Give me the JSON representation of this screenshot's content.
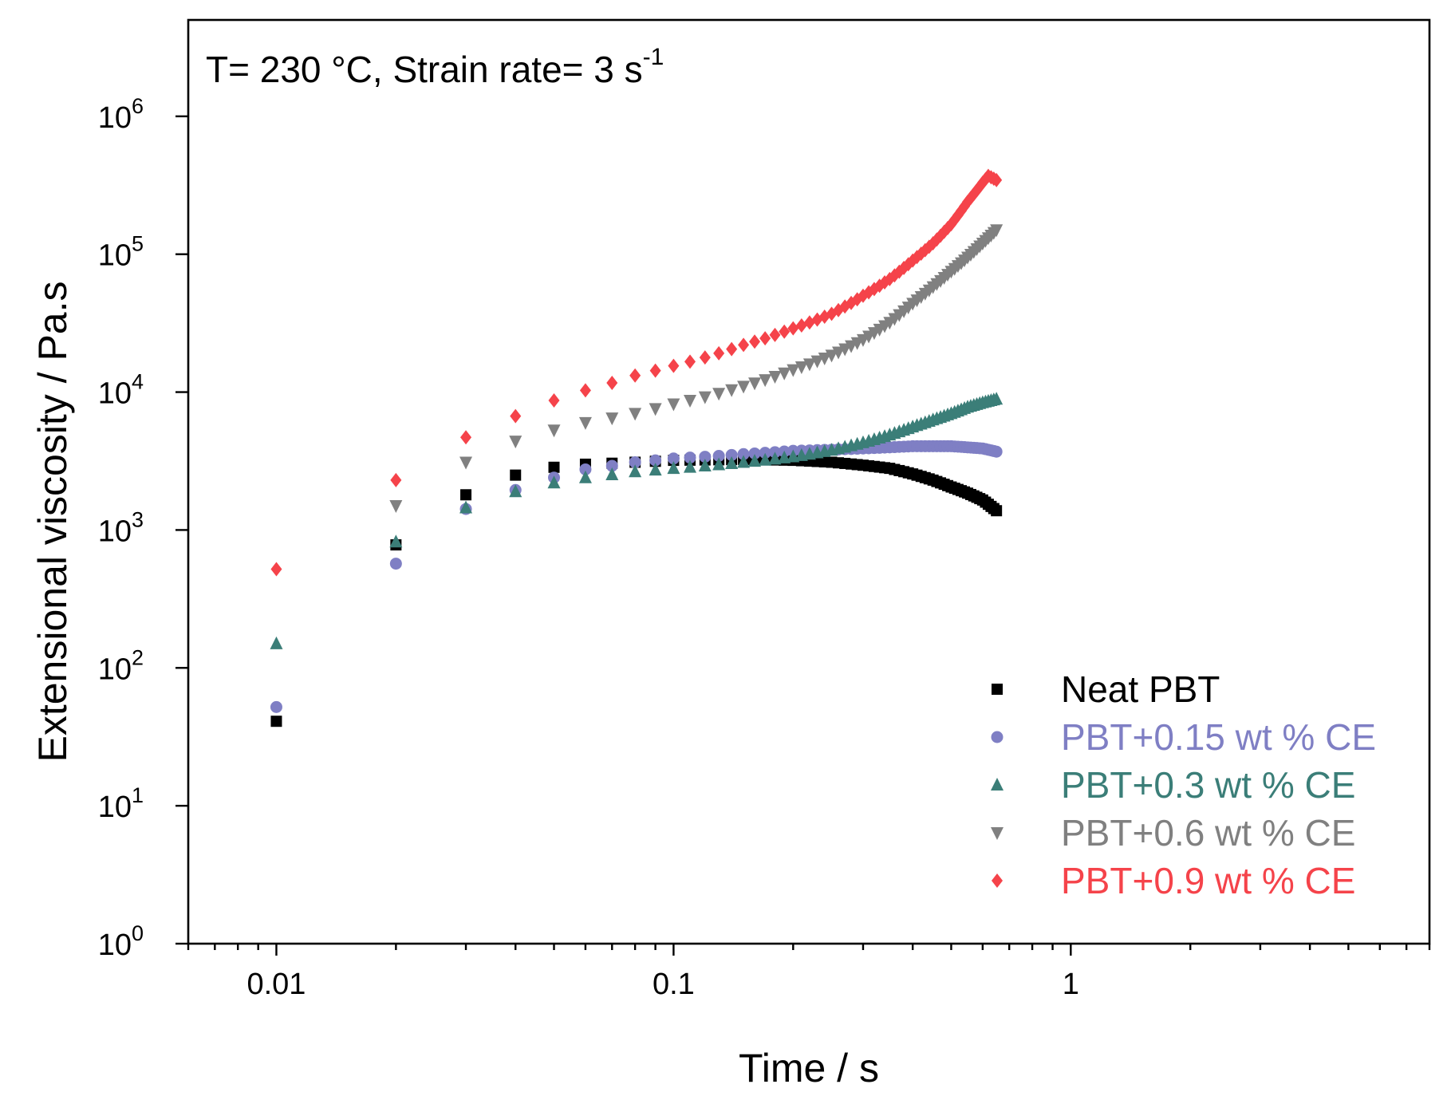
{
  "chart_data": {
    "type": "scatter",
    "title": "",
    "annotation": {
      "text": "T= 230 °C, Strain rate= 3 s",
      "superscript": "-1"
    },
    "xlabel": "Time / s",
    "ylabel": "Extensional viscosity / Pa.s",
    "xscale": "log",
    "yscale": "log",
    "xlim": [
      0.006,
      8
    ],
    "ylim": [
      1,
      5000000
    ],
    "x_ticks": [
      {
        "value": 0.01,
        "label": "0.01"
      },
      {
        "value": 0.1,
        "label": "0.1"
      },
      {
        "value": 1,
        "label": "1"
      }
    ],
    "y_ticks": [
      {
        "value": 1,
        "base": "10",
        "exp": "0"
      },
      {
        "value": 10,
        "base": "10",
        "exp": "1"
      },
      {
        "value": 100,
        "base": "10",
        "exp": "2"
      },
      {
        "value": 1000,
        "base": "10",
        "exp": "3"
      },
      {
        "value": 10000,
        "base": "10",
        "exp": "4"
      },
      {
        "value": 100000,
        "base": "10",
        "exp": "5"
      },
      {
        "value": 1000000,
        "base": "10",
        "exp": "6"
      }
    ],
    "legend_position": "bottom-right",
    "series": [
      {
        "name": "Neat PBT",
        "color": "#000000",
        "marker": "square",
        "anchors": [
          [
            0.01,
            41
          ],
          [
            0.02,
            780
          ],
          [
            0.03,
            1800
          ],
          [
            0.04,
            2500
          ],
          [
            0.05,
            2850
          ],
          [
            0.06,
            3000
          ],
          [
            0.08,
            3100
          ],
          [
            0.1,
            3200
          ],
          [
            0.15,
            3250
          ],
          [
            0.2,
            3200
          ],
          [
            0.25,
            3100
          ],
          [
            0.3,
            2950
          ],
          [
            0.35,
            2800
          ],
          [
            0.4,
            2550
          ],
          [
            0.45,
            2300
          ],
          [
            0.5,
            2050
          ],
          [
            0.55,
            1850
          ],
          [
            0.6,
            1650
          ],
          [
            0.65,
            1380
          ]
        ]
      },
      {
        "name": "PBT+0.15 wt % CE",
        "color": "#7f7fc4",
        "marker": "circle",
        "anchors": [
          [
            0.01,
            52
          ],
          [
            0.02,
            570
          ],
          [
            0.03,
            1420
          ],
          [
            0.04,
            1950
          ],
          [
            0.05,
            2400
          ],
          [
            0.06,
            2750
          ],
          [
            0.08,
            3100
          ],
          [
            0.1,
            3300
          ],
          [
            0.15,
            3550
          ],
          [
            0.2,
            3750
          ],
          [
            0.3,
            3900
          ],
          [
            0.4,
            4050
          ],
          [
            0.5,
            4050
          ],
          [
            0.6,
            3900
          ],
          [
            0.65,
            3700
          ]
        ]
      },
      {
        "name": "PBT+0.3 wt % CE",
        "color": "#3b7e78",
        "marker": "triangle-up",
        "anchors": [
          [
            0.01,
            150
          ],
          [
            0.02,
            820
          ],
          [
            0.03,
            1450
          ],
          [
            0.04,
            1900
          ],
          [
            0.05,
            2200
          ],
          [
            0.06,
            2400
          ],
          [
            0.08,
            2650
          ],
          [
            0.1,
            2800
          ],
          [
            0.15,
            3100
          ],
          [
            0.2,
            3400
          ],
          [
            0.25,
            3800
          ],
          [
            0.3,
            4300
          ],
          [
            0.35,
            4900
          ],
          [
            0.4,
            5600
          ],
          [
            0.45,
            6300
          ],
          [
            0.5,
            7000
          ],
          [
            0.55,
            7800
          ],
          [
            0.6,
            8400
          ],
          [
            0.65,
            8900
          ]
        ]
      },
      {
        "name": "PBT+0.6 wt % CE",
        "color": "#808080",
        "marker": "triangle-down",
        "anchors": [
          [
            0.02,
            1500
          ],
          [
            0.03,
            3100
          ],
          [
            0.04,
            4400
          ],
          [
            0.05,
            5300
          ],
          [
            0.06,
            6000
          ],
          [
            0.08,
            7000
          ],
          [
            0.1,
            8200
          ],
          [
            0.15,
            11000
          ],
          [
            0.2,
            14500
          ],
          [
            0.25,
            18500
          ],
          [
            0.3,
            24000
          ],
          [
            0.35,
            32000
          ],
          [
            0.4,
            44000
          ],
          [
            0.45,
            58000
          ],
          [
            0.5,
            75000
          ],
          [
            0.55,
            95000
          ],
          [
            0.6,
            120000
          ],
          [
            0.65,
            150000
          ]
        ]
      },
      {
        "name": "PBT+0.9 wt % CE",
        "color": "#f5434a",
        "marker": "diamond",
        "anchors": [
          [
            0.01,
            520
          ],
          [
            0.02,
            2300
          ],
          [
            0.03,
            4700
          ],
          [
            0.04,
            6700
          ],
          [
            0.05,
            8700
          ],
          [
            0.06,
            10300
          ],
          [
            0.08,
            13200
          ],
          [
            0.1,
            15500
          ],
          [
            0.15,
            22000
          ],
          [
            0.2,
            29000
          ],
          [
            0.25,
            37000
          ],
          [
            0.3,
            50000
          ],
          [
            0.35,
            66000
          ],
          [
            0.4,
            90000
          ],
          [
            0.45,
            120000
          ],
          [
            0.5,
            165000
          ],
          [
            0.55,
            240000
          ],
          [
            0.6,
            330000
          ],
          [
            0.62,
            370000
          ],
          [
            0.65,
            345000
          ]
        ]
      }
    ]
  }
}
